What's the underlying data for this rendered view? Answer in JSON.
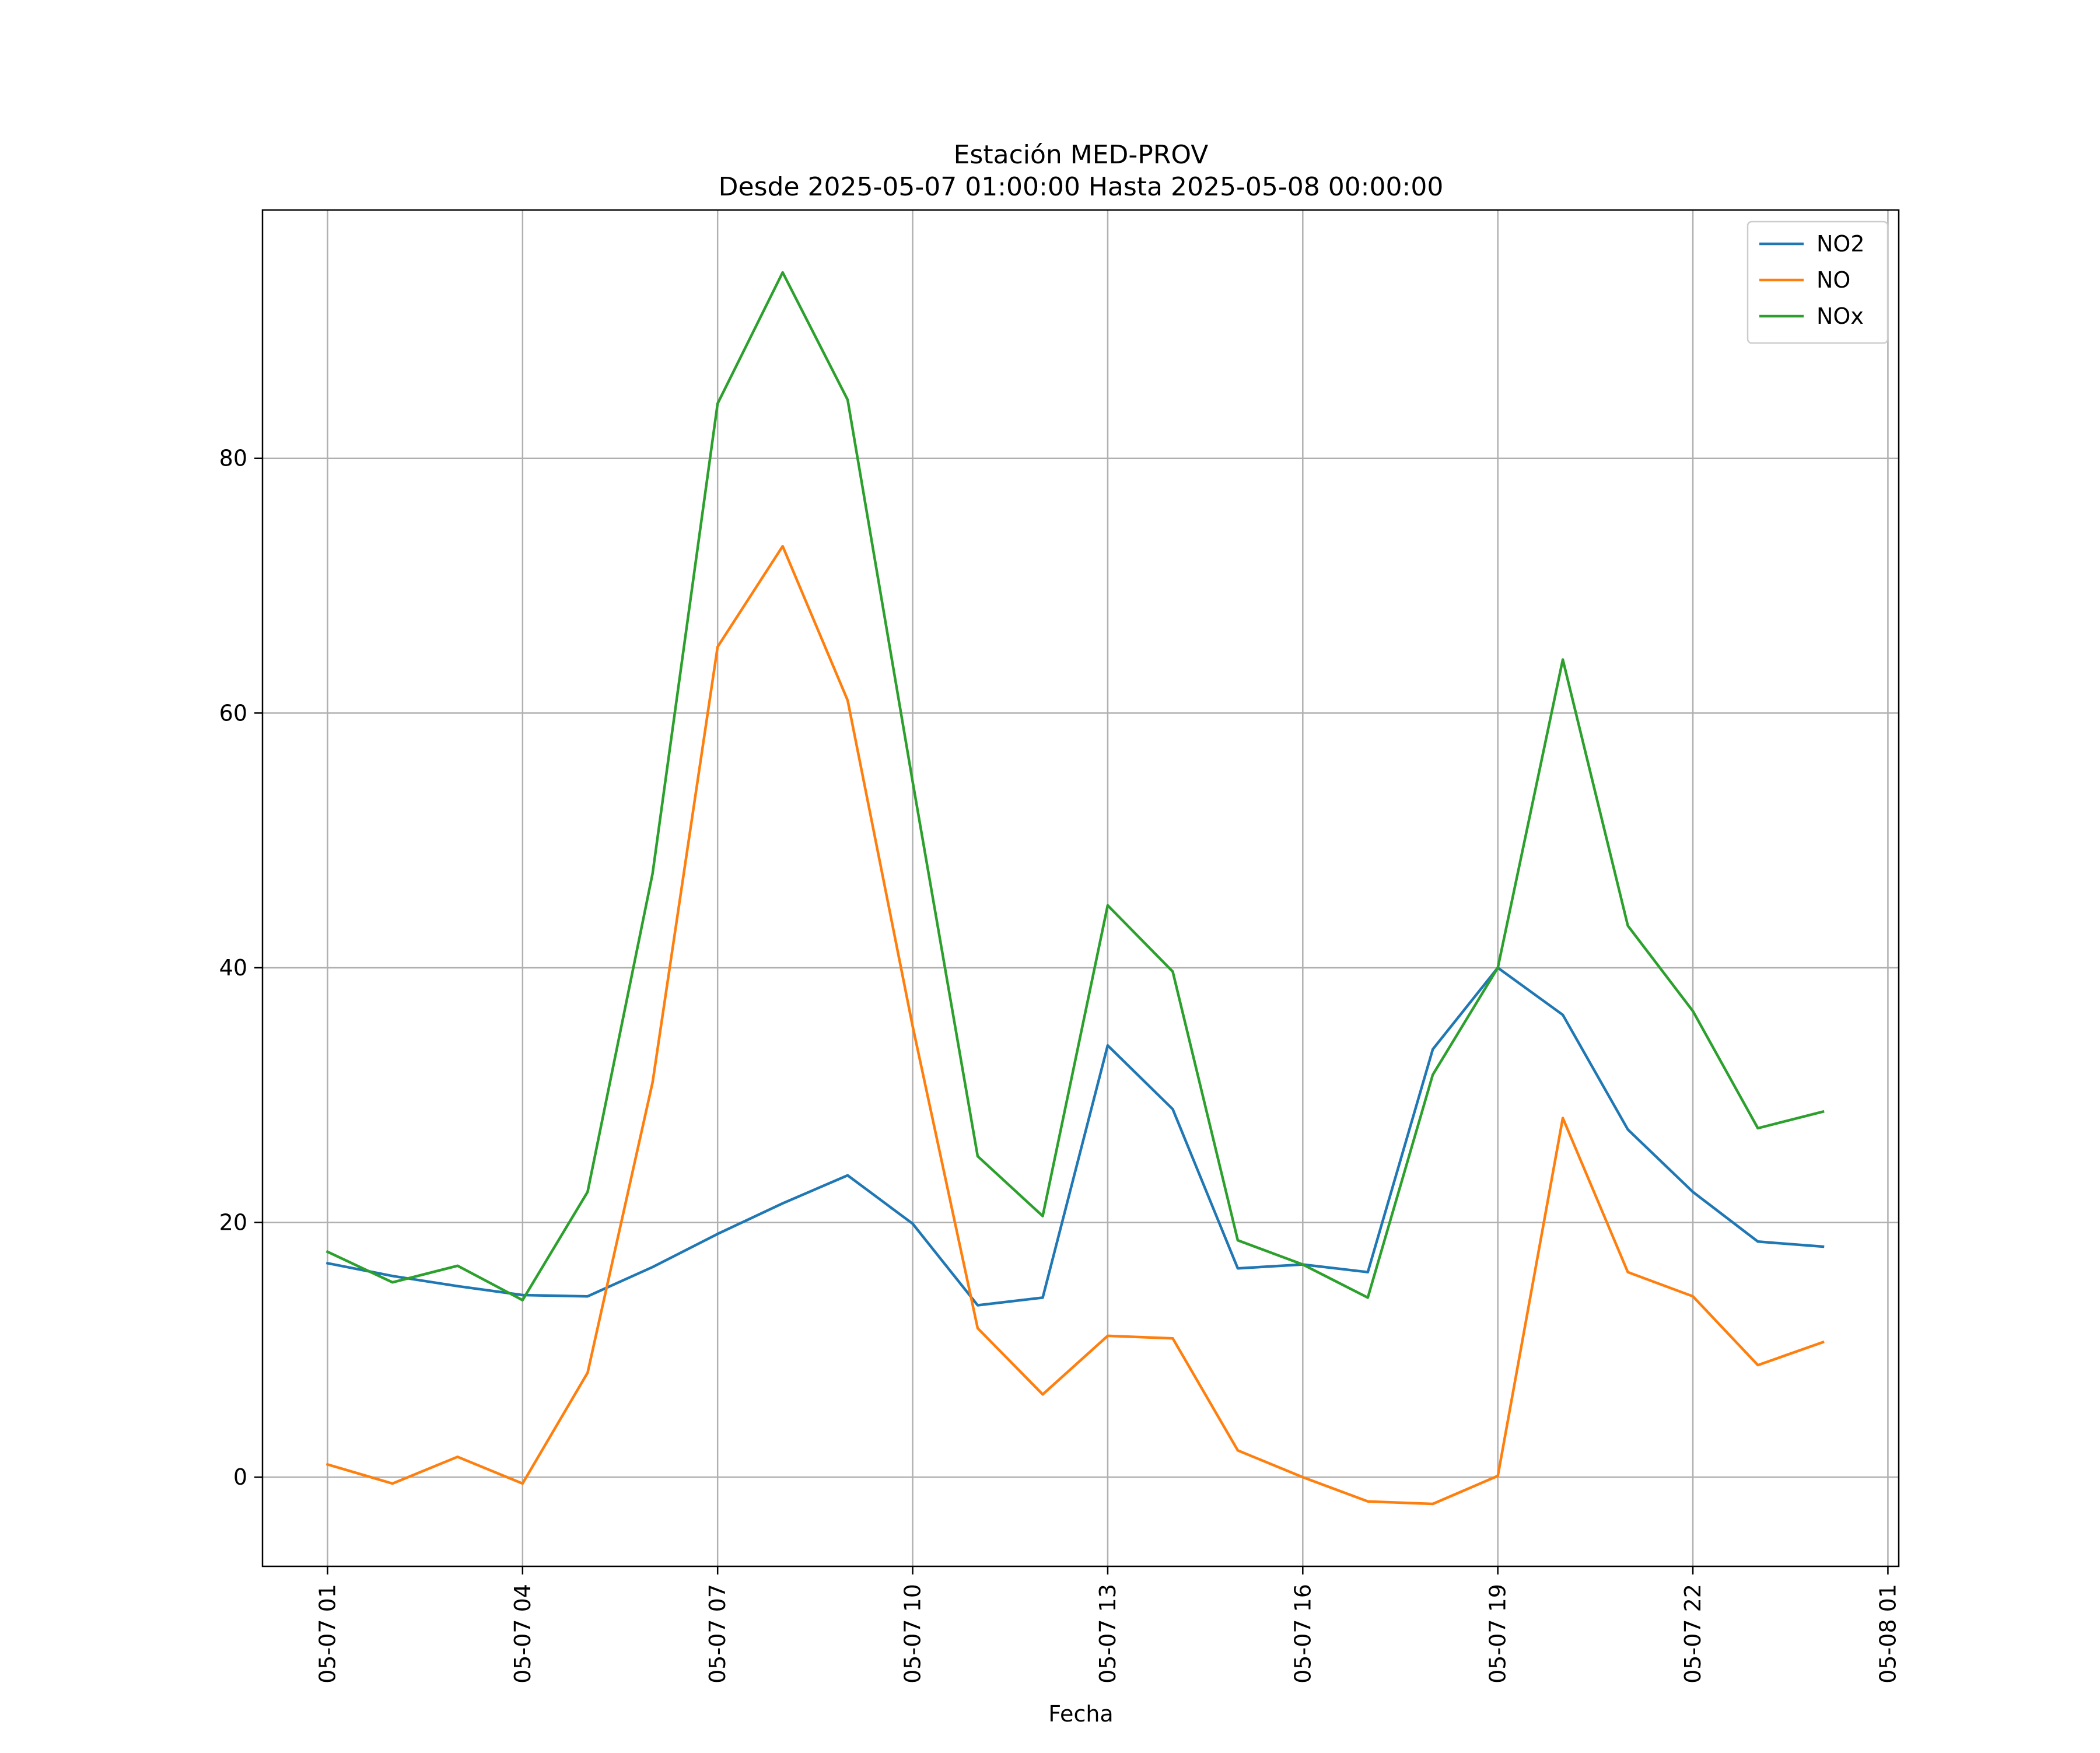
{
  "chart_data": {
    "type": "line",
    "title": "Estación MED-PROV",
    "subtitle": "Desde 2025-05-07 01:00:00 Hasta 2025-05-08 00:00:00",
    "xlabel": "Fecha",
    "ylabel": "",
    "x": [
      "2025-05-07 01:00",
      "2025-05-07 02:00",
      "2025-05-07 03:00",
      "2025-05-07 04:00",
      "2025-05-07 05:00",
      "2025-05-07 06:00",
      "2025-05-07 07:00",
      "2025-05-07 08:00",
      "2025-05-07 09:00",
      "2025-05-07 10:00",
      "2025-05-07 11:00",
      "2025-05-07 12:00",
      "2025-05-07 13:00",
      "2025-05-07 14:00",
      "2025-05-07 15:00",
      "2025-05-07 16:00",
      "2025-05-07 17:00",
      "2025-05-07 18:00",
      "2025-05-07 19:00",
      "2025-05-07 20:00",
      "2025-05-07 21:00",
      "2025-05-07 22:00",
      "2025-05-07 23:00",
      "2025-05-08 00:00"
    ],
    "xlim": [
      "2025-05-07 00:00",
      "2025-05-08 01:10"
    ],
    "ylim": [
      -7,
      99.5
    ],
    "x_ticks": [
      {
        "value": "2025-05-07 01:00",
        "label": "05-07 01"
      },
      {
        "value": "2025-05-07 04:00",
        "label": "05-07 04"
      },
      {
        "value": "2025-05-07 07:00",
        "label": "05-07 07"
      },
      {
        "value": "2025-05-07 10:00",
        "label": "05-07 10"
      },
      {
        "value": "2025-05-07 13:00",
        "label": "05-07 13"
      },
      {
        "value": "2025-05-07 16:00",
        "label": "05-07 16"
      },
      {
        "value": "2025-05-07 19:00",
        "label": "05-07 19"
      },
      {
        "value": "2025-05-07 22:00",
        "label": "05-07 22"
      },
      {
        "value": "2025-05-08 01:00",
        "label": "05-08 01"
      }
    ],
    "y_ticks": [
      0,
      20,
      40,
      60,
      80
    ],
    "grid": true,
    "legend_position": "top-right",
    "series": [
      {
        "name": "NO2",
        "color": "#1f77b4",
        "values": [
          16.8,
          15.8,
          15.0,
          14.3,
          14.2,
          16.5,
          19.1,
          21.5,
          23.7,
          19.9,
          13.5,
          14.1,
          33.9,
          28.9,
          16.4,
          16.7,
          16.1,
          33.6,
          40.0,
          36.3,
          27.3,
          22.4,
          18.5,
          18.1
        ]
      },
      {
        "name": "NO",
        "color": "#ff7f0e",
        "values": [
          1.0,
          -0.5,
          1.6,
          -0.5,
          8.2,
          31.0,
          65.2,
          73.1,
          61.0,
          35.4,
          11.7,
          6.5,
          11.1,
          10.9,
          2.1,
          0.0,
          -1.9,
          -2.1,
          0.1,
          28.2,
          16.1,
          14.2,
          8.8,
          10.6
        ]
      },
      {
        "name": "NOx",
        "color": "#2ca02c",
        "values": [
          17.7,
          15.3,
          16.6,
          13.9,
          22.4,
          47.4,
          84.3,
          94.6,
          84.6,
          54.6,
          25.2,
          20.5,
          44.9,
          39.7,
          18.6,
          16.7,
          14.1,
          31.6,
          40.0,
          64.2,
          43.3,
          36.6,
          27.4,
          28.7
        ]
      }
    ]
  }
}
